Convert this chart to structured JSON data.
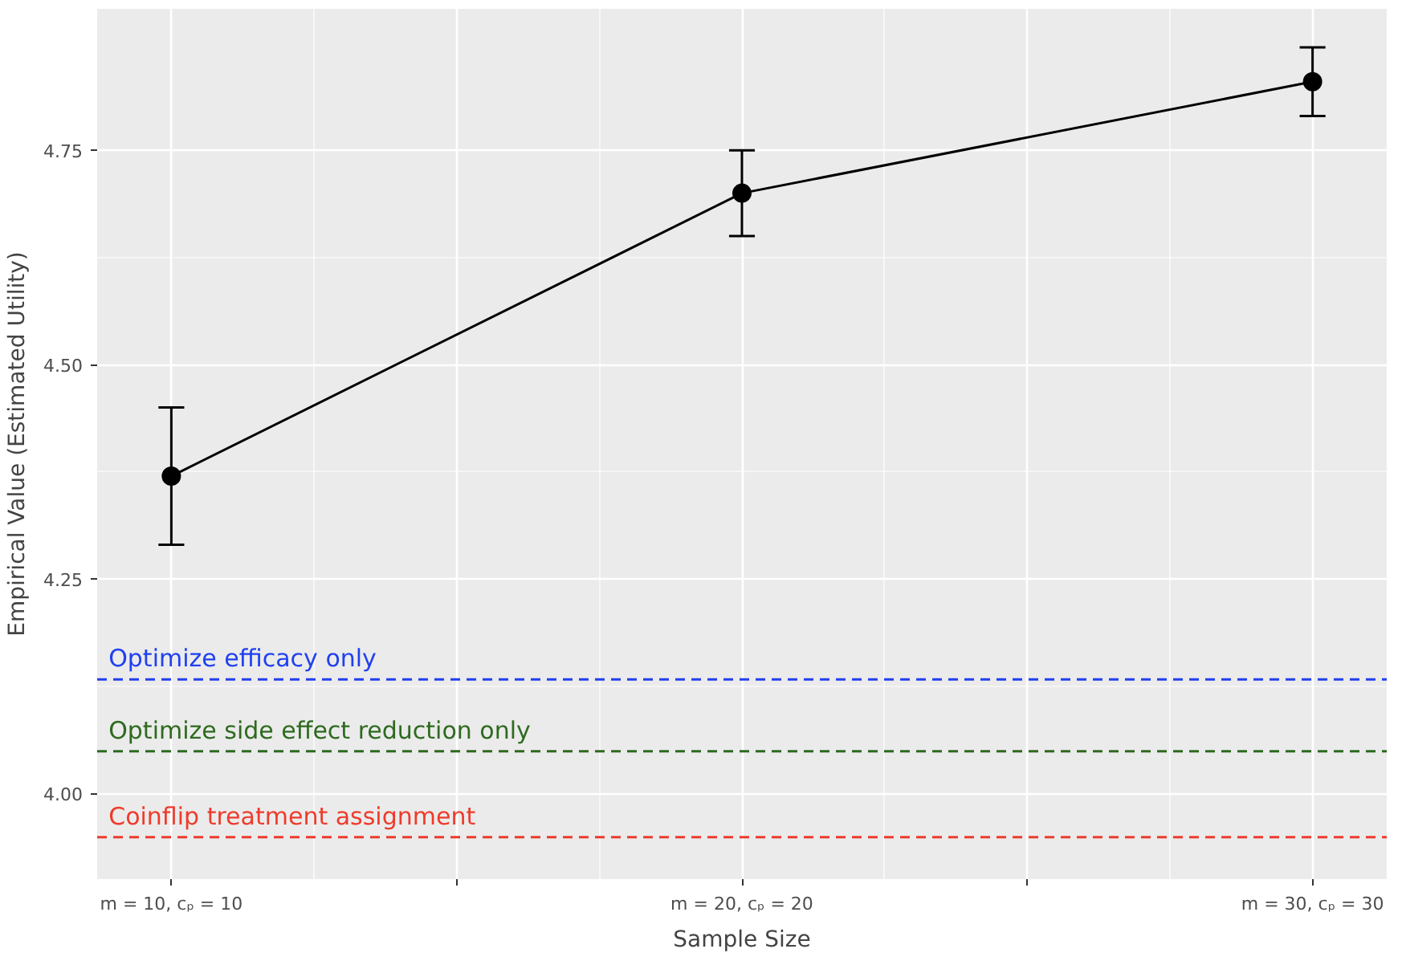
{
  "chart_data": {
    "type": "line",
    "xlabel": "Sample Size",
    "ylabel": "Empirical Value (Estimated Utility)",
    "categories": [
      "m = 10, cₚ = 10",
      "m = 20, cₚ = 20",
      "m = 30, cₚ = 30"
    ],
    "series": [
      {
        "color": "#000000",
        "values": [
          4.37,
          4.7,
          4.83
        ],
        "errors": [
          [
            4.29,
            4.45
          ],
          [
            4.65,
            4.75
          ],
          [
            4.79,
            4.87
          ]
        ]
      }
    ],
    "ylim": [
      3.9,
      4.915
    ],
    "yticks": [
      {
        "value": 4.0,
        "label": "4.00"
      },
      {
        "value": 4.25,
        "label": "4.25"
      },
      {
        "value": 4.5,
        "label": "4.50"
      },
      {
        "value": 4.75,
        "label": "4.75"
      }
    ],
    "ref_lines": [
      {
        "axis": "y",
        "value": 4.133,
        "label": "Optimize efficacy only",
        "color": "#2040f0",
        "line_style": "dashed"
      },
      {
        "axis": "y",
        "value": 4.049,
        "label": "Optimize side effect reduction only",
        "color": "#2e6a1e",
        "line_style": "dashed"
      },
      {
        "axis": "y",
        "value": 3.949,
        "label": "Coinflip treatment assignment",
        "color": "#ee3b2b",
        "line_style": "dashed"
      }
    ],
    "grid": true,
    "marker": "circle",
    "line_style": "solid"
  }
}
